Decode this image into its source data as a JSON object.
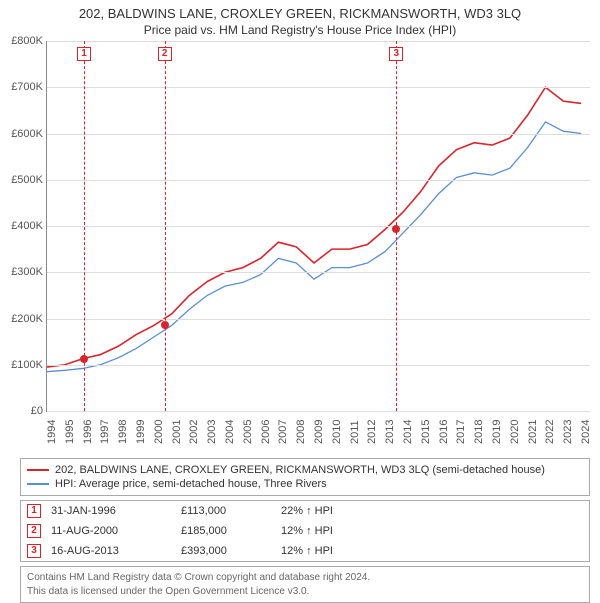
{
  "title": "202, BALDWINS LANE, CROXLEY GREEN, RICKMANSWORTH, WD3 3LQ",
  "subtitle": "Price paid vs. HM Land Registry's House Price Index (HPI)",
  "chart": {
    "type": "line",
    "background_color": "#ffffff",
    "grid_color": "#dddddd",
    "axis_color": "#888888",
    "x_years": [
      1994,
      1995,
      1996,
      1997,
      1998,
      1999,
      2000,
      2001,
      2002,
      2003,
      2004,
      2005,
      2006,
      2007,
      2008,
      2009,
      2010,
      2011,
      2012,
      2013,
      2014,
      2015,
      2016,
      2017,
      2018,
      2019,
      2020,
      2021,
      2022,
      2023,
      2024
    ],
    "xlim": [
      1994,
      2024.5
    ],
    "ylim": [
      0,
      800000
    ],
    "ytick_step": 100000,
    "yticks": [
      "£0",
      "£100K",
      "£200K",
      "£300K",
      "£400K",
      "£500K",
      "£600K",
      "£700K",
      "£800K"
    ],
    "label_fontsize": 11,
    "series": [
      {
        "name": "202, BALDWINS LANE, CROXLEY GREEN, RICKMANSWORTH, WD3 3LQ (semi-detached house)",
        "color": "#d9242b",
        "line_width": 1.6,
        "data_by_year": {
          "1994": 95000,
          "1995": 100000,
          "1996": 113000,
          "1997": 122000,
          "1998": 140000,
          "1999": 165000,
          "2000": 185000,
          "2001": 210000,
          "2002": 250000,
          "2003": 280000,
          "2004": 300000,
          "2005": 310000,
          "2006": 330000,
          "2007": 365000,
          "2008": 355000,
          "2009": 320000,
          "2010": 350000,
          "2011": 350000,
          "2012": 360000,
          "2013": 393000,
          "2014": 430000,
          "2015": 475000,
          "2016": 530000,
          "2017": 565000,
          "2018": 580000,
          "2019": 575000,
          "2020": 590000,
          "2021": 640000,
          "2022": 700000,
          "2023": 670000,
          "2024": 665000
        }
      },
      {
        "name": "HPI: Average price, semi-detached house, Three Rivers",
        "color": "#5a8fd6",
        "line_width": 1.3,
        "data_by_year": {
          "1994": 85000,
          "1995": 88000,
          "1996": 92000,
          "1997": 100000,
          "1998": 115000,
          "1999": 135000,
          "2000": 160000,
          "2001": 185000,
          "2002": 220000,
          "2003": 250000,
          "2004": 270000,
          "2005": 278000,
          "2006": 295000,
          "2007": 330000,
          "2008": 320000,
          "2009": 285000,
          "2010": 310000,
          "2011": 310000,
          "2012": 320000,
          "2013": 345000,
          "2014": 385000,
          "2015": 425000,
          "2016": 470000,
          "2017": 505000,
          "2018": 515000,
          "2019": 510000,
          "2020": 525000,
          "2021": 570000,
          "2022": 625000,
          "2023": 605000,
          "2024": 600000
        }
      }
    ],
    "markers": [
      {
        "n": "1",
        "year": 1996.08,
        "color": "#d9242b"
      },
      {
        "n": "2",
        "year": 2000.61,
        "color": "#d9242b"
      },
      {
        "n": "3",
        "year": 2013.62,
        "color": "#d9242b"
      }
    ],
    "sale_dots": [
      {
        "year": 1996.08,
        "value": 113000,
        "color": "#d9242b"
      },
      {
        "year": 2000.61,
        "value": 185000,
        "color": "#d9242b"
      },
      {
        "year": 2013.62,
        "value": 393000,
        "color": "#d9242b"
      }
    ]
  },
  "legend": {
    "items": [
      {
        "color": "#d9242b",
        "label": "202, BALDWINS LANE, CROXLEY GREEN, RICKMANSWORTH, WD3 3LQ (semi-detached house)"
      },
      {
        "color": "#5a8fd6",
        "label": "HPI: Average price, semi-detached house, Three Rivers"
      }
    ]
  },
  "sales_table": {
    "rows": [
      {
        "n": "1",
        "color": "#d9242b",
        "date": "31-JAN-1996",
        "price": "£113,000",
        "pct": "22% ↑ HPI"
      },
      {
        "n": "2",
        "color": "#d9242b",
        "date": "11-AUG-2000",
        "price": "£185,000",
        "pct": "12% ↑ HPI"
      },
      {
        "n": "3",
        "color": "#d9242b",
        "date": "16-AUG-2013",
        "price": "£393,000",
        "pct": "12% ↑ HPI"
      }
    ]
  },
  "license": {
    "line1": "Contains HM Land Registry data © Crown copyright and database right 2024.",
    "line2": "This data is licensed under the Open Government Licence v3.0."
  }
}
